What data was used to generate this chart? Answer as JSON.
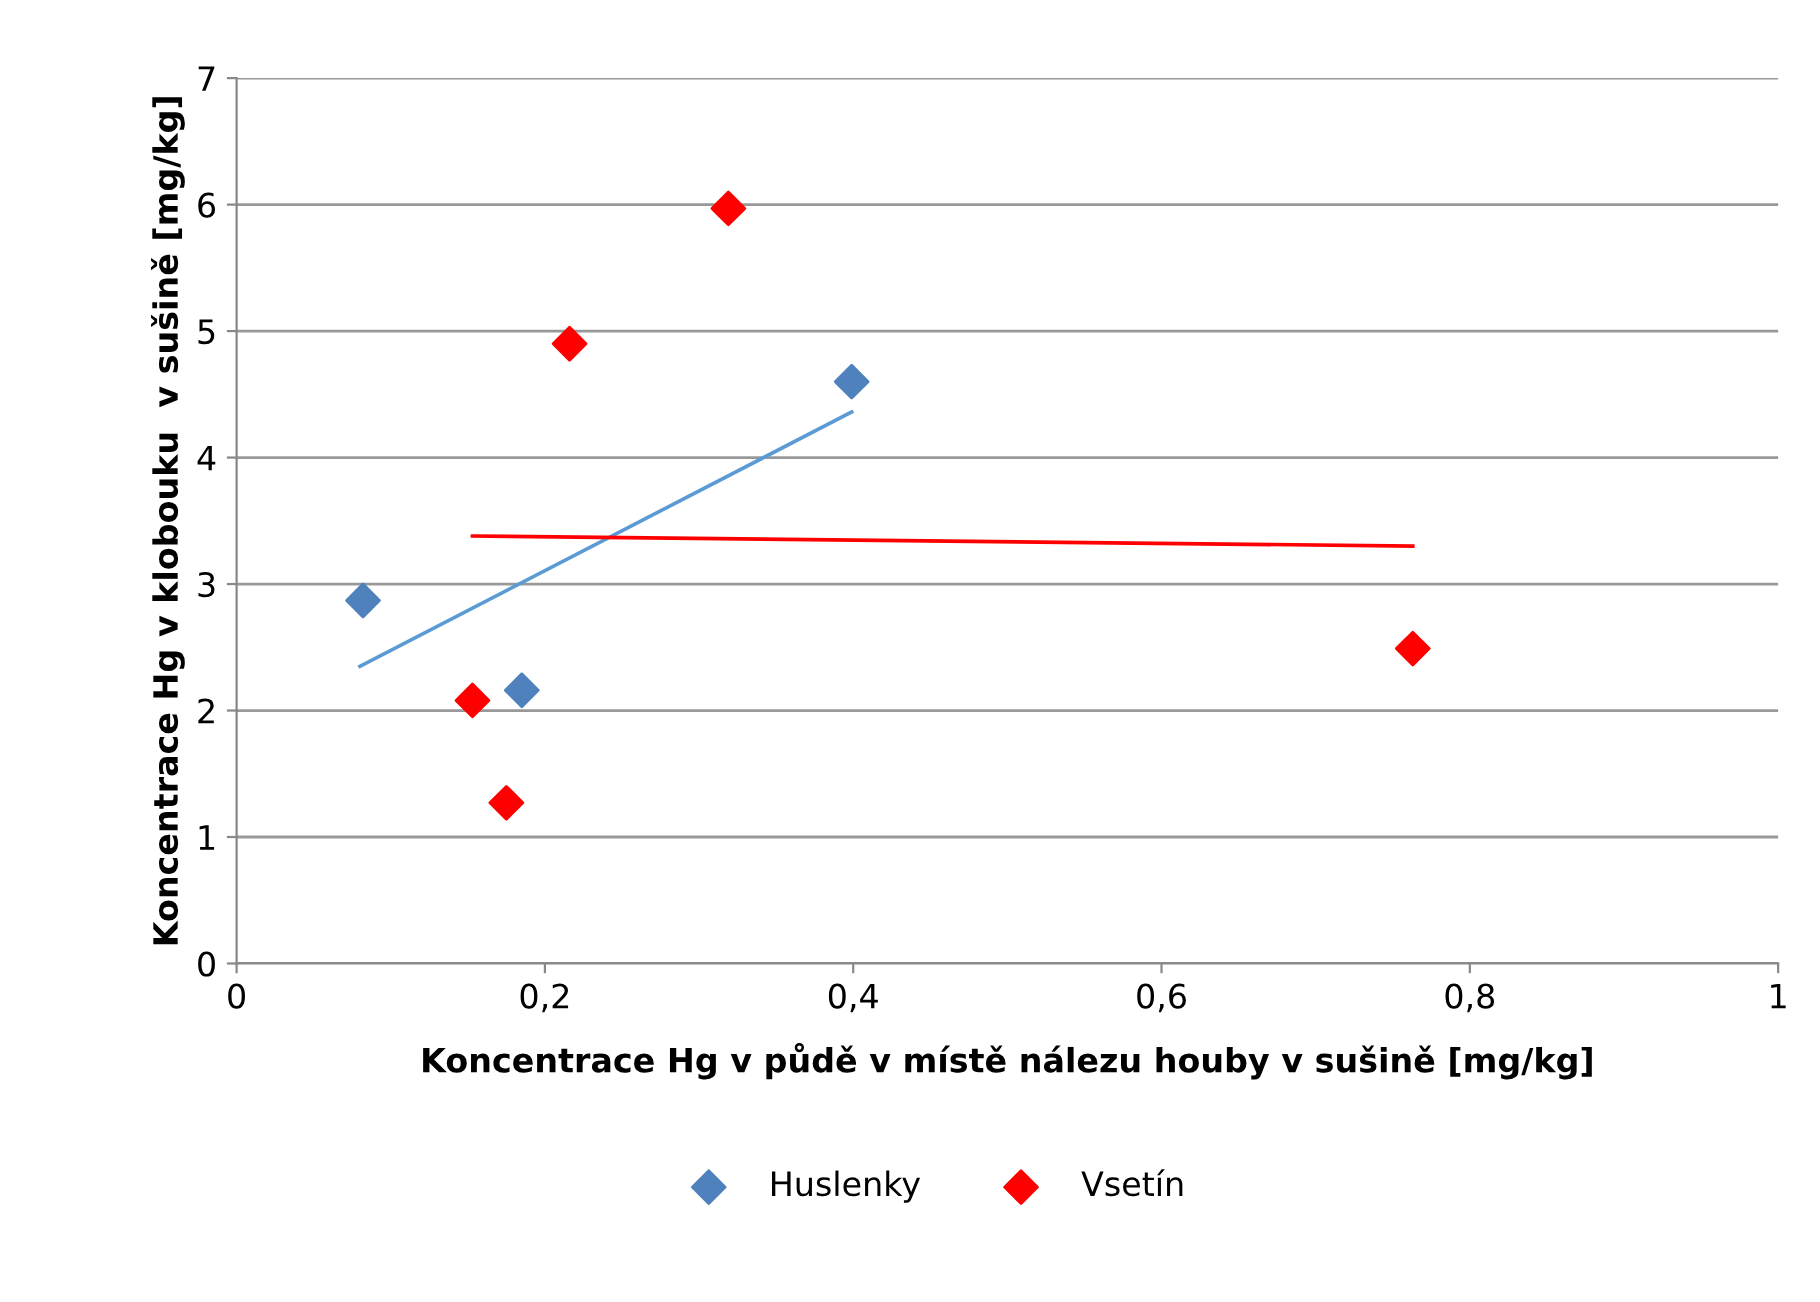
{
  "chart_data": {
    "type": "scatter",
    "xlabel": "Koncentrace Hg v půdě v místě nálezu houby v sušině [mg/kg]",
    "ylabel": "Koncentrace Hg v klobouku  v sušině [mg/kg]",
    "series": [
      {
        "name": "Huslenky",
        "color": "#4f81bd",
        "marker": "diamond",
        "x": [
          0.082,
          0.185,
          0.399
        ],
        "values": [
          2.87,
          2.16,
          4.6
        ]
      },
      {
        "name": "Vsetín",
        "color": "#ff0000",
        "marker": "diamond",
        "x": [
          0.319,
          0.216,
          0.153,
          0.175,
          0.763
        ],
        "values": [
          5.97,
          4.9,
          2.08,
          1.27,
          2.49
        ]
      },
      {
        "type": "line",
        "color": "#5b9bd5",
        "marker": "none",
        "x": [
          0.08,
          0.399
        ],
        "values": [
          2.35,
          4.36
        ]
      },
      {
        "type": "line",
        "color": "#ff0000",
        "marker": "none",
        "x": [
          0.153,
          0.763
        ],
        "values": [
          3.38,
          3.3
        ]
      }
    ],
    "xlim": [
      0,
      1
    ],
    "xticks": [
      0,
      {
        "value": 0.2,
        "label": "0,2"
      },
      {
        "value": 0.4,
        "label": "0,4"
      },
      {
        "value": 0.6,
        "label": "0,6"
      },
      {
        "value": 0.8,
        "label": "0,8"
      },
      1
    ],
    "ylim": [
      0,
      7
    ],
    "yticks": [
      0,
      1,
      2,
      3,
      4,
      5,
      6,
      7
    ],
    "grid": "y",
    "legend": "bottom"
  }
}
